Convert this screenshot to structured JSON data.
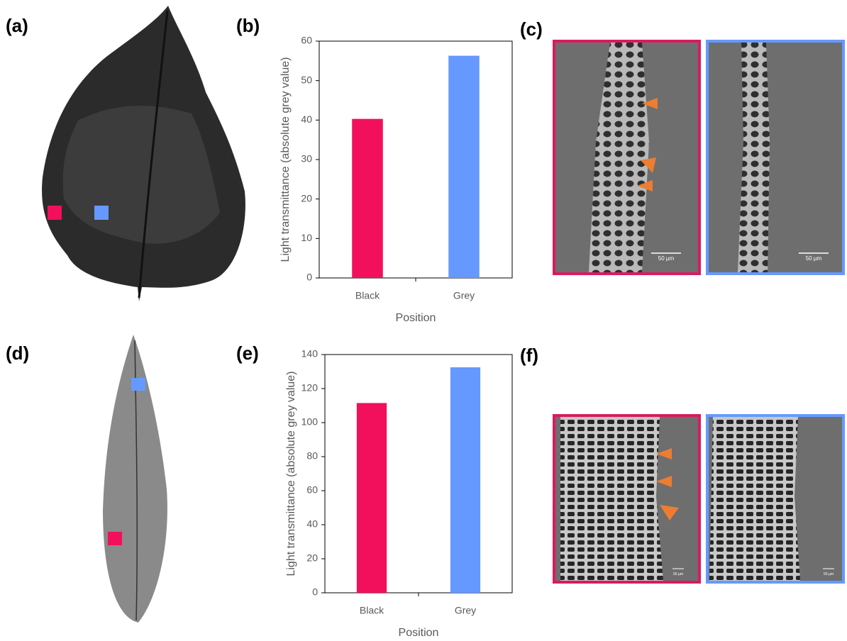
{
  "panels": [
    "(a)",
    "(b)",
    "(c)",
    "(d)",
    "(e)",
    "(f)"
  ],
  "scale_bars": [
    "50 µm",
    "50 µm",
    "50 µm",
    "50 µm"
  ],
  "chart_data": [
    {
      "type": "bar",
      "categories": [
        "Black",
        "Grey"
      ],
      "values": [
        40.3,
        56.3
      ],
      "colors": [
        "#f20f5c",
        "#6699ff"
      ],
      "ylim": [
        0,
        60
      ],
      "yticks": [
        0,
        10,
        20,
        30,
        40,
        50,
        60
      ],
      "ylabel": "Light transmittance (absolute grey value)",
      "xlabel": "Position"
    },
    {
      "type": "bar",
      "categories": [
        "Black",
        "Grey"
      ],
      "values": [
        111.5,
        132.5
      ],
      "colors": [
        "#f20f5c",
        "#6699ff"
      ],
      "ylim": [
        0,
        140
      ],
      "yticks": [
        0,
        20,
        40,
        60,
        80,
        100,
        120,
        140
      ],
      "ylabel": "Light transmittance (absolute grey value)",
      "xlabel": "Position"
    }
  ]
}
